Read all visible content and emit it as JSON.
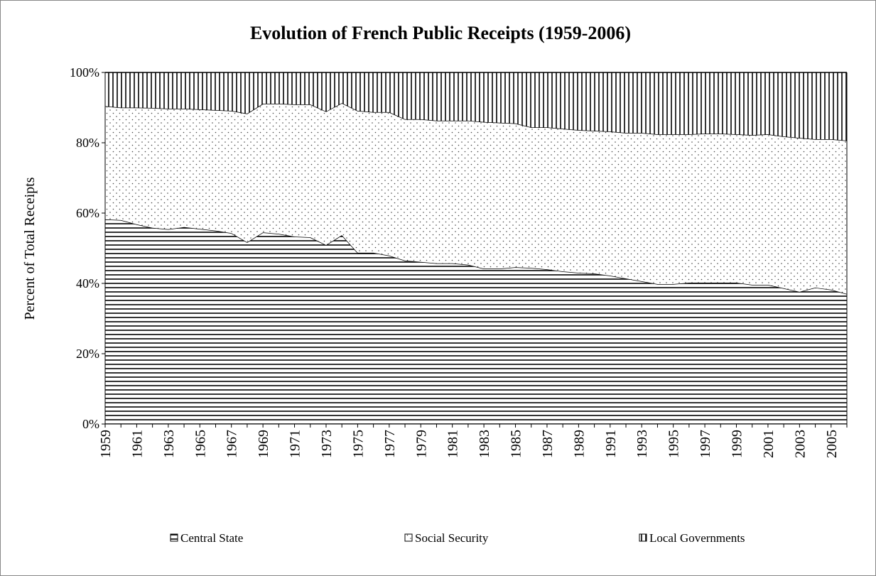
{
  "chart_data": {
    "type": "stacked_area",
    "title": "Evolution of French Public Receipts (1959-2006)",
    "y_label": "Percent of Total Receipts",
    "categories": [
      "1959",
      null,
      "1961",
      null,
      "1963",
      null,
      "1965",
      null,
      "1967",
      null,
      "1969",
      null,
      "1971",
      null,
      "1973",
      null,
      "1975",
      null,
      "1977",
      null,
      "1979",
      null,
      "1981",
      null,
      "1983",
      null,
      "1985",
      null,
      "1987",
      null,
      "1989",
      null,
      "1991",
      null,
      "1993",
      null,
      "1995",
      null,
      "1997",
      null,
      "1999",
      null,
      "2001",
      null,
      "2003",
      null,
      "2005",
      null
    ],
    "ylim": [
      0,
      100
    ],
    "yticks": [
      {
        "value": 0,
        "label": "0%"
      },
      {
        "value": 20,
        "label": "20%"
      },
      {
        "value": 40,
        "label": "40%"
      },
      {
        "value": 60,
        "label": "60%"
      },
      {
        "value": 80,
        "label": "80%"
      },
      {
        "value": 100,
        "label": "100%"
      }
    ],
    "legend": "bottom",
    "series": [
      {
        "name": "Central State",
        "color": "#000000",
        "pattern": "horizontal",
        "values": [
          58.2,
          58.0,
          56.8,
          55.8,
          55.4,
          56.0,
          55.5,
          55.0,
          54.3,
          51.7,
          54.5,
          54.1,
          53.3,
          53.1,
          50.9,
          53.7,
          48.7,
          48.7,
          47.9,
          46.5,
          46.1,
          45.7,
          45.7,
          45.3,
          44.2,
          44.2,
          44.6,
          44.4,
          44.0,
          43.4,
          43.0,
          42.8,
          42.2,
          41.4,
          40.6,
          39.8,
          39.8,
          40.2,
          40.2,
          40.2,
          40.2,
          39.6,
          39.6,
          38.6,
          37.6,
          38.8,
          38.2,
          37.0
        ]
      },
      {
        "name": "Social Security",
        "color": "#000000",
        "pattern": "dots",
        "values": [
          32.2,
          32.0,
          33.2,
          34.1,
          34.3,
          33.7,
          34.0,
          34.3,
          34.8,
          36.6,
          36.6,
          37.0,
          37.6,
          37.8,
          38.0,
          37.6,
          40.4,
          40.0,
          40.8,
          40.2,
          40.6,
          40.6,
          40.6,
          41.0,
          41.7,
          41.5,
          40.9,
          40.0,
          40.4,
          40.6,
          40.6,
          40.6,
          41.0,
          41.4,
          42.2,
          42.6,
          42.6,
          42.2,
          42.4,
          42.4,
          42.2,
          42.6,
          42.8,
          43.2,
          43.8,
          42.2,
          42.8,
          43.6
        ]
      },
      {
        "name": "Local Governments",
        "color": "#000000",
        "pattern": "vertical",
        "values": [
          9.6,
          10.0,
          10.0,
          10.1,
          10.3,
          10.3,
          10.5,
          10.7,
          10.9,
          11.7,
          8.9,
          8.9,
          9.1,
          9.1,
          11.1,
          8.7,
          10.9,
          11.3,
          11.3,
          13.3,
          13.3,
          13.7,
          13.7,
          13.7,
          14.1,
          14.3,
          14.5,
          15.6,
          15.6,
          16.0,
          16.4,
          16.6,
          16.8,
          17.2,
          17.2,
          17.6,
          17.6,
          17.6,
          17.4,
          17.4,
          17.6,
          17.8,
          17.6,
          18.2,
          18.6,
          19.0,
          19.0,
          19.4
        ]
      }
    ]
  }
}
